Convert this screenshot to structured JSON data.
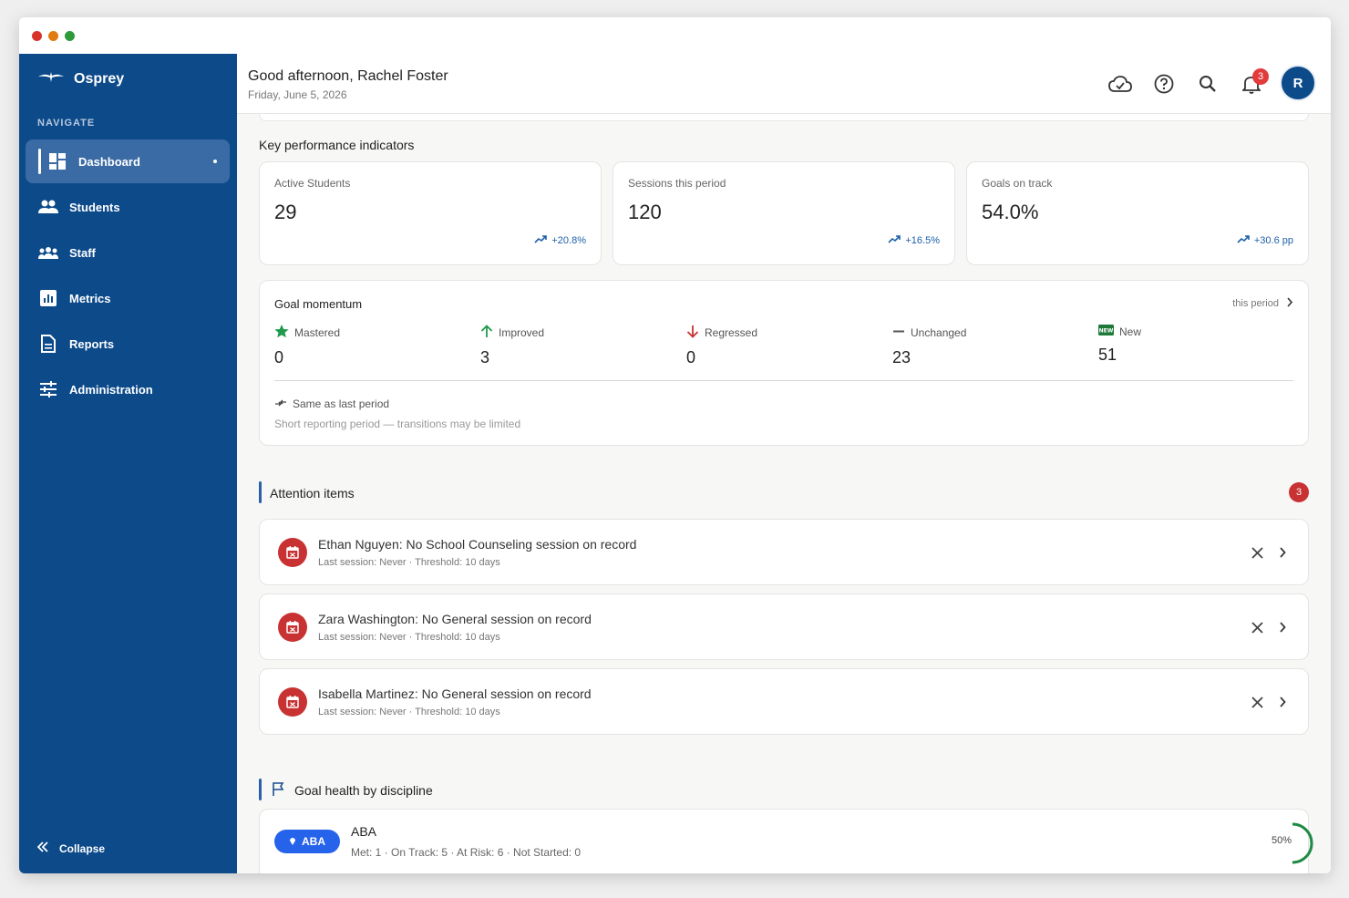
{
  "app": {
    "name": "Osprey"
  },
  "sidebar": {
    "nav_label": "NAVIGATE",
    "items": [
      {
        "label": "Dashboard",
        "icon": "dashboard-icon"
      },
      {
        "label": "Students",
        "icon": "students-icon"
      },
      {
        "label": "Staff",
        "icon": "staff-icon"
      },
      {
        "label": "Metrics",
        "icon": "metrics-icon"
      },
      {
        "label": "Reports",
        "icon": "reports-icon"
      },
      {
        "label": "Administration",
        "icon": "administration-icon"
      }
    ],
    "collapse_label": "Collapse"
  },
  "header": {
    "greeting": "Good afternoon, Rachel Foster",
    "date": "Friday, June 5, 2026",
    "notification_count": "3",
    "avatar_initial": "R"
  },
  "kpi": {
    "title": "Key performance indicators",
    "cards": [
      {
        "label": "Active Students",
        "value": "29",
        "trend": "+20.8%"
      },
      {
        "label": "Sessions this period",
        "value": "120",
        "trend": "+16.5%"
      },
      {
        "label": "Goals on track",
        "value": "54.0%",
        "trend": "+30.6 pp"
      }
    ]
  },
  "goal_momentum": {
    "title": "Goal momentum",
    "period": "this period",
    "stats": [
      {
        "label": "Mastered",
        "value": "0"
      },
      {
        "label": "Improved",
        "value": "3"
      },
      {
        "label": "Regressed",
        "value": "0"
      },
      {
        "label": "Unchanged",
        "value": "23"
      },
      {
        "label": "New",
        "value": "51"
      }
    ],
    "same_as_last": "Same as last period",
    "note": "Short reporting period — transitions may be limited"
  },
  "attention": {
    "title": "Attention items",
    "count": "3",
    "items": [
      {
        "title": "Ethan Nguyen: No School Counseling session on record",
        "sub": "Last session: Never · Threshold: 10 days"
      },
      {
        "title": "Zara Washington: No General session on record",
        "sub": "Last session: Never · Threshold: 10 days"
      },
      {
        "title": "Isabella Martinez: No General session on record",
        "sub": "Last session: Never · Threshold: 10 days"
      }
    ]
  },
  "goal_health": {
    "title": "Goal health by discipline",
    "rows": [
      {
        "pill": "ABA",
        "name": "ABA",
        "summary": "Met: 1 · On Track: 5 · At Risk: 6 · Not Started: 0",
        "percent": "50%",
        "fraction": 0.5
      }
    ]
  },
  "colors": {
    "brand": "#0c4a8a",
    "accent": "#2563eb",
    "danger": "#c83232",
    "success": "#1f8a43"
  }
}
